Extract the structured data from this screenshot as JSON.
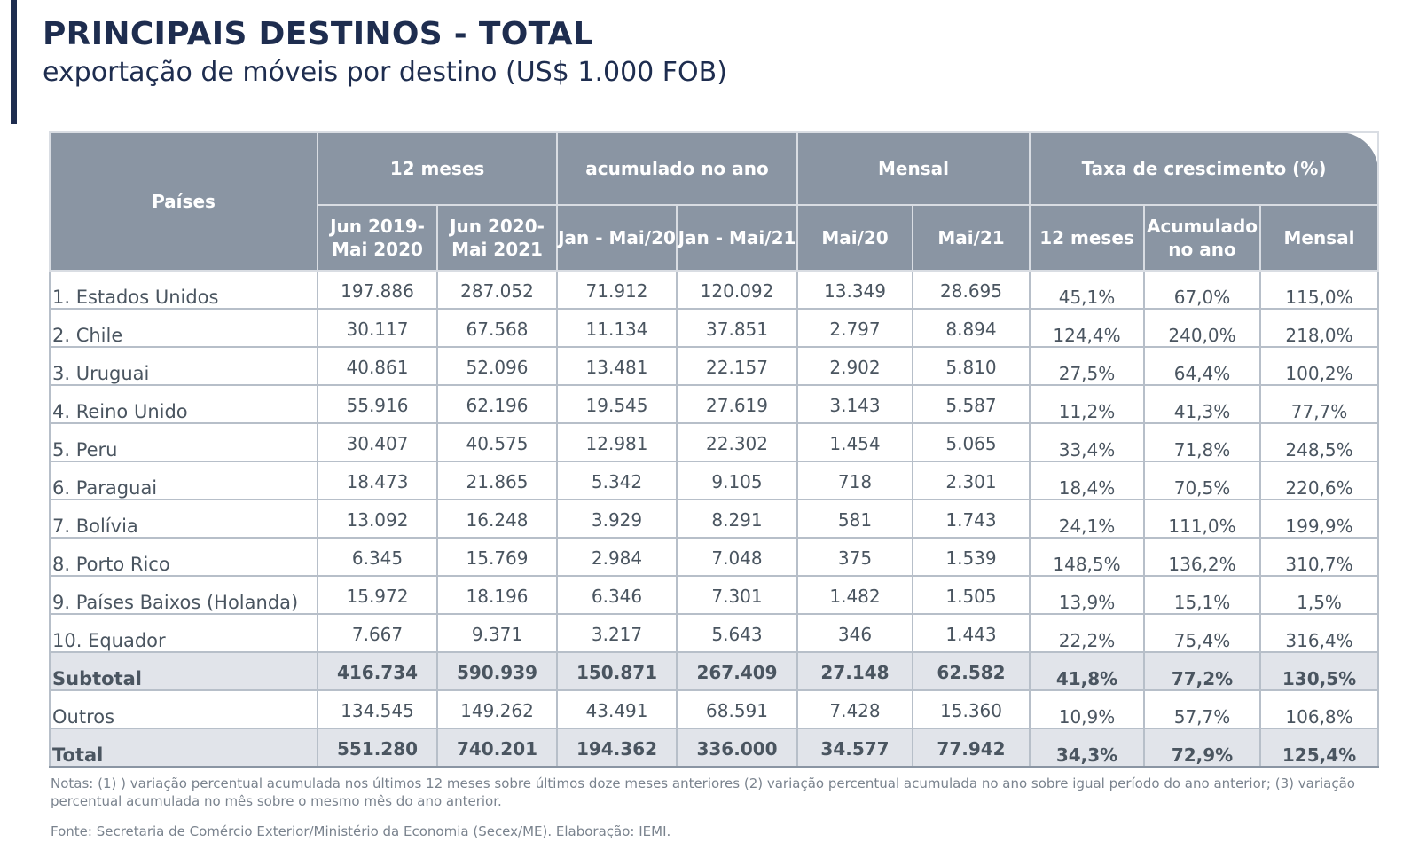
{
  "header": {
    "title": "PRINCIPAIS DESTINOS - TOTAL",
    "subtitle": "exportação de móveis por destino (US$ 1.000 FOB)"
  },
  "table": {
    "col_paises": "Países",
    "groups": {
      "g12": "12 meses",
      "gacum": "acumulado no ano",
      "gmensal": "Mensal",
      "gtaxa": "Taxa de crescimento (%)"
    },
    "sub": {
      "s1": "Jun 2019- Mai 2020",
      "s2": "Jun 2020- Mai 2021",
      "s3": "Jan - Mai/20",
      "s4": "Jan - Mai/21",
      "s5": "Mai/20",
      "s6": "Mai/21",
      "s7": "12 meses",
      "s8": "Acumulado no ano",
      "s9": "Mensal"
    },
    "rows": [
      [
        "1. Estados Unidos",
        "197.886",
        "287.052",
        "71.912",
        "120.092",
        "13.349",
        "28.695",
        "45,1%",
        "67,0%",
        "115,0%"
      ],
      [
        "2. Chile",
        "30.117",
        "67.568",
        "11.134",
        "37.851",
        "2.797",
        "8.894",
        "124,4%",
        "240,0%",
        "218,0%"
      ],
      [
        "3. Uruguai",
        "40.861",
        "52.096",
        "13.481",
        "22.157",
        "2.902",
        "5.810",
        "27,5%",
        "64,4%",
        "100,2%"
      ],
      [
        "4. Reino Unido",
        "55.916",
        "62.196",
        "19.545",
        "27.619",
        "3.143",
        "5.587",
        "11,2%",
        "41,3%",
        "77,7%"
      ],
      [
        "5. Peru",
        "30.407",
        "40.575",
        "12.981",
        "22.302",
        "1.454",
        "5.065",
        "33,4%",
        "71,8%",
        "248,5%"
      ],
      [
        "6. Paraguai",
        "18.473",
        "21.865",
        "5.342",
        "9.105",
        "718",
        "2.301",
        "18,4%",
        "70,5%",
        "220,6%"
      ],
      [
        "7. Bolívia",
        "13.092",
        "16.248",
        "3.929",
        "8.291",
        "581",
        "1.743",
        "24,1%",
        "111,0%",
        "199,9%"
      ],
      [
        "8. Porto Rico",
        "6.345",
        "15.769",
        "2.984",
        "7.048",
        "375",
        "1.539",
        "148,5%",
        "136,2%",
        "310,7%"
      ],
      [
        "9. Países Baixos (Holanda)",
        "15.972",
        "18.196",
        "6.346",
        "7.301",
        "1.482",
        "1.505",
        "13,9%",
        "15,1%",
        "1,5%"
      ],
      [
        "10. Equador",
        "7.667",
        "9.371",
        "3.217",
        "5.643",
        "346",
        "1.443",
        "22,2%",
        "75,4%",
        "316,4%"
      ]
    ],
    "subtotal": [
      "Subtotal",
      "416.734",
      "590.939",
      "150.871",
      "267.409",
      "27.148",
      "62.582",
      "41,8%",
      "77,2%",
      "130,5%"
    ],
    "outros": [
      "Outros",
      "134.545",
      "149.262",
      "43.491",
      "68.591",
      "7.428",
      "15.360",
      "10,9%",
      "57,7%",
      "106,8%"
    ],
    "total": [
      "Total",
      "551.280",
      "740.201",
      "194.362",
      "336.000",
      "34.577",
      "77.942",
      "34,3%",
      "72,9%",
      "125,4%"
    ]
  },
  "footer": {
    "notes": "Notas: (1) ) variação percentual acumulada nos últimos 12 meses sobre últimos doze meses anteriores (2) variação percentual acumulada no ano sobre igual período do ano anterior; (3) variação percentual acumulada no mês sobre o mesmo mês do ano anterior.",
    "source": "Fonte: Secretaria de Comércio Exterior/Ministério da Economia (Secex/ME). Elaboração: IEMI."
  },
  "colors": {
    "title": "#1e2d4f",
    "header_bg": "#8a95a3",
    "subtotal_bg": "#e1e4ea"
  }
}
